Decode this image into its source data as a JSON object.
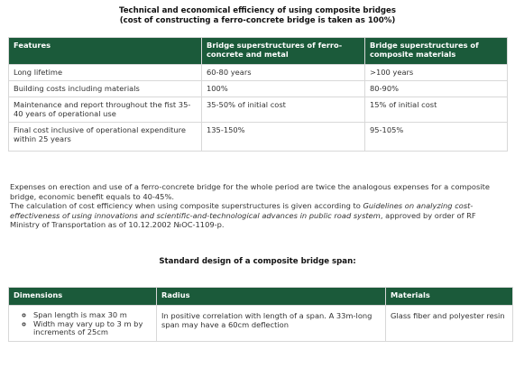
{
  "title": {
    "line1": "Technical and economical efficiency of using composite bridges",
    "line2": "(cost of constructing a ferro-concrete bridge is taken as 100%)"
  },
  "table1": {
    "headers": [
      "Features",
      "Bridge superstructures of ferro-concrete and metal",
      "Bridge superstructures of composite materials"
    ],
    "rows": [
      [
        "Long lifetime",
        "60-80 years",
        ">100 years"
      ],
      [
        "Building costs including materials",
        "100%",
        "80-90%"
      ],
      [
        "Maintenance and report throughout the fist 35-40 years of operational use",
        "35-50% of initial cost",
        "15% of initial cost"
      ],
      [
        "Final cost inclusive of operational expenditure within 25 years",
        "135-150%",
        "95-105%"
      ]
    ]
  },
  "paragraph": {
    "p1": "Expenses on erection and use of a ferro-concrete bridge for the whole period are twice the analogous expenses for a composite bridge, economic benefit equals to 40-45%.",
    "p2_start": "The calculation of cost efficiency when using composite superstructures is given according to ",
    "p2_italic": "Guidelines on analyzing cost-effectiveness of using innovations and scientific-and-technological advances in public road system",
    "p2_end": ", approved by order of RF Ministry of Transportation as of 10.12.2002 №ОС-1109-р."
  },
  "section2": {
    "title": "Standard design of a composite bridge span:"
  },
  "table2": {
    "headers": [
      "Dimensions",
      "Radius",
      "Materials"
    ],
    "dimensions": [
      "Span length is max 30 m",
      "Width may vary up to 3 m by increments of 25cm"
    ],
    "radius": "In positive correlation with length of a span. A 33m-long span may have a 60cm deflection",
    "materials": "Glass fiber and polyester resin"
  }
}
